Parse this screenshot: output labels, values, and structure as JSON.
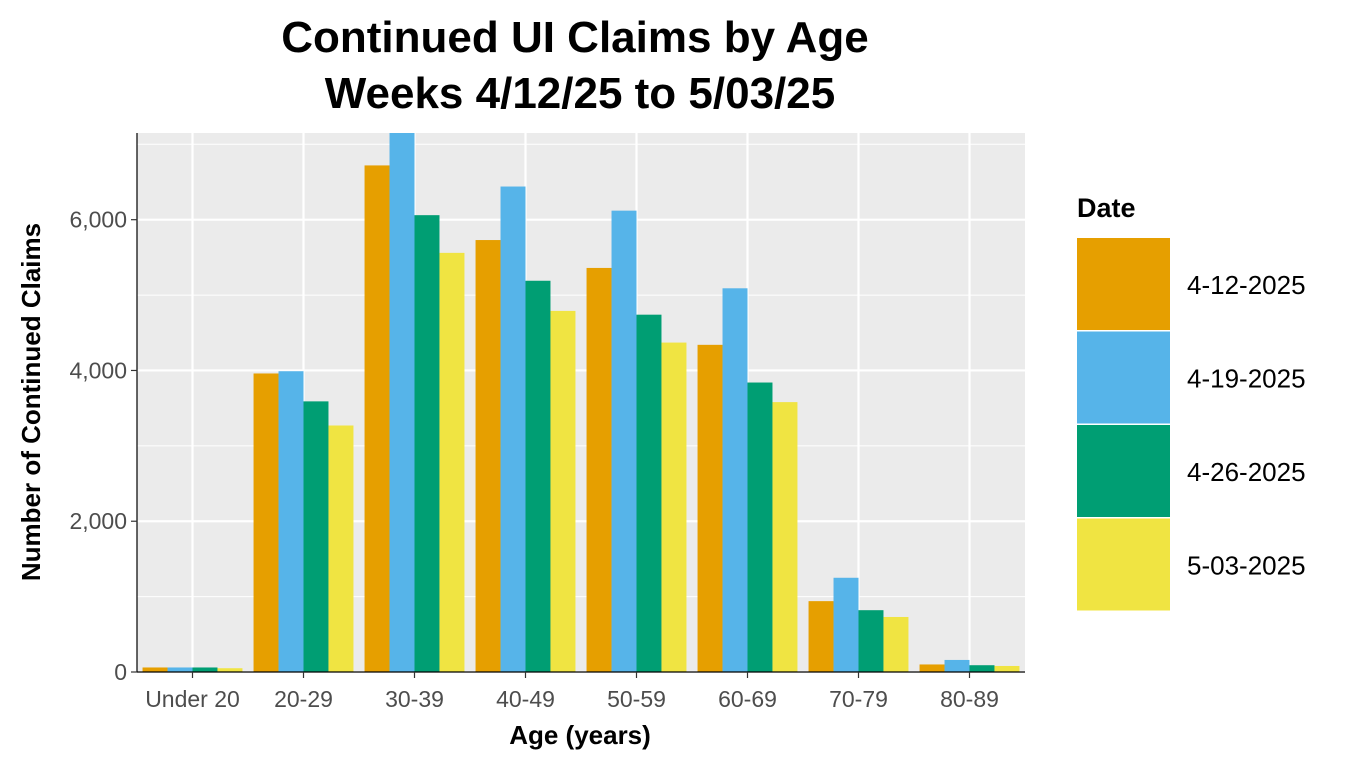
{
  "chart_data": {
    "type": "bar",
    "title": [
      "Continued UI Claims by Age",
      "Weeks 4/12/25 to 5/03/25"
    ],
    "xlabel": "Age (years)",
    "ylabel": "Number of Continued Claims",
    "categories": [
      "Under 20",
      "20-29",
      "30-39",
      "40-49",
      "50-59",
      "60-69",
      "70-79",
      "80-89"
    ],
    "ylim": [
      0,
      7150
    ],
    "yticks": [
      0,
      2000,
      4000,
      6000
    ],
    "ytick_labels": [
      "0",
      "2,000",
      "4,000",
      "6,000"
    ],
    "grid": true,
    "legend": {
      "title": "Date",
      "position": "right"
    },
    "series": [
      {
        "name": "4-12-2025",
        "color": "#E69F00",
        "values": [
          60,
          3960,
          6720,
          5730,
          5360,
          4340,
          940,
          100
        ]
      },
      {
        "name": "4-19-2025",
        "color": "#56B4E9",
        "values": [
          60,
          3990,
          7150,
          6440,
          6120,
          5090,
          1250,
          160
        ]
      },
      {
        "name": "4-26-2025",
        "color": "#009E73",
        "values": [
          60,
          3590,
          6060,
          5190,
          4740,
          3840,
          820,
          90
        ]
      },
      {
        "name": "5-03-2025",
        "color": "#F0E442",
        "values": [
          50,
          3270,
          5560,
          4790,
          4370,
          3580,
          730,
          80
        ]
      }
    ]
  }
}
